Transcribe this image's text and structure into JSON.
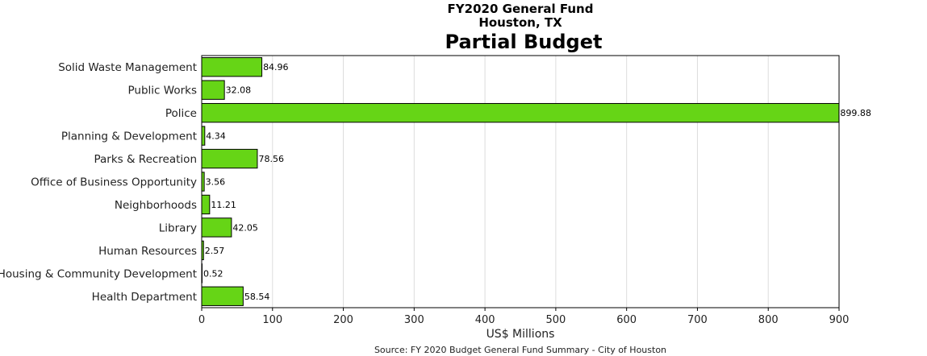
{
  "chart_data": {
    "type": "bar",
    "orientation": "horizontal",
    "suptitle_line1": "FY2020 General Fund",
    "suptitle_line2": "Houston, TX",
    "title": "Partial Budget",
    "xlabel": "US$ Millions",
    "ylabel": "",
    "source": "Source: FY 2020 Budget General Fund Summary - City of Houston",
    "xlim": [
      0,
      900
    ],
    "xticks": [
      0,
      100,
      200,
      300,
      400,
      500,
      600,
      700,
      800,
      900
    ],
    "grid": "x",
    "bar_color": "#66d516",
    "categories": [
      "Solid Waste Management",
      "Public Works",
      "Police",
      "Planning & Development",
      "Parks & Recreation",
      "Office of Business Opportunity",
      "Neighborhoods",
      "Library",
      "Human Resources",
      "Housing & Community Development",
      "Health Department"
    ],
    "values": [
      84.96,
      32.08,
      899.88,
      4.34,
      78.56,
      3.56,
      11.21,
      42.05,
      2.57,
      0.52,
      58.54
    ],
    "value_labels": [
      "84.96",
      "32.08",
      "899.88",
      "4.34",
      "78.56",
      "3.56",
      "11.21",
      "42.05",
      "2.57",
      "0.52",
      "58.54"
    ]
  }
}
